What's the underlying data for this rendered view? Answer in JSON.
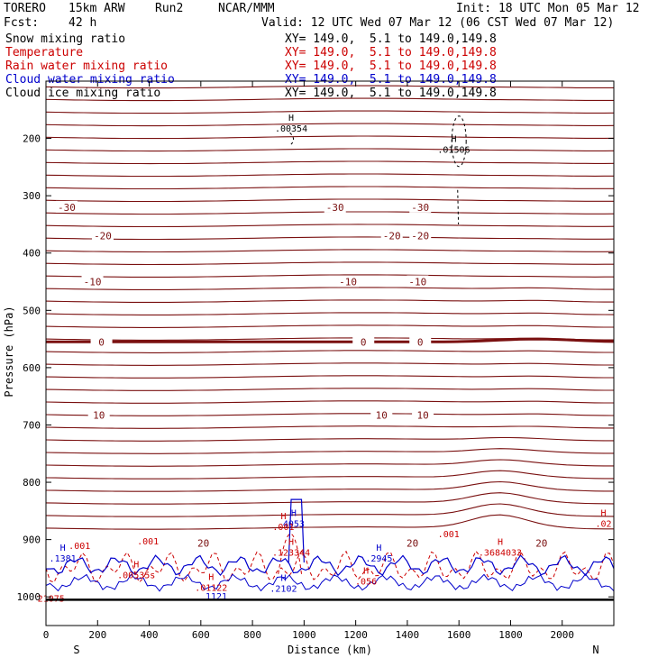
{
  "header": {
    "model": "TORERO",
    "resolution": "15km ARW",
    "run": "Run2",
    "org": "NCAR/MMM",
    "init": "Init: 18 UTC Mon 05 Mar 12",
    "fcst_label": "Fcst:",
    "fcst_value": "42 h",
    "valid": "Valid: 12 UTC Wed 07 Mar 12 (06 CST Wed 07 Mar 12)"
  },
  "legend": [
    {
      "name": "Snow mixing ratio",
      "xy": "XY= 149.0,  5.1 to 149.0,149.8",
      "color": "#000000"
    },
    {
      "name": "Temperature",
      "xy": "XY= 149.0,  5.1 to 149.0,149.8",
      "color": "#cc0000"
    },
    {
      "name": "Rain water mixing ratio",
      "xy": "XY= 149.0,  5.1 to 149.0,149.8",
      "color": "#cc0000"
    },
    {
      "name": "Cloud water mixing ratio",
      "xy": "XY= 149.0,  5.1 to 149.0,149.8",
      "color": "#0000cc"
    },
    {
      "name": "Cloud ice mixing ratio",
      "xy": "XY= 149.0,  5.1 to 149.0,149.8",
      "color": "#000000"
    }
  ],
  "chart_data": {
    "type": "contour-cross-section",
    "xlabel": "Distance (km)",
    "ylabel": "Pressure (hPa)",
    "xlim": [
      0,
      2200
    ],
    "ylim": [
      1050,
      100
    ],
    "x_ticks": [
      0,
      200,
      400,
      600,
      800,
      1000,
      1200,
      1400,
      1600,
      1800,
      2000
    ],
    "y_ticks": [
      200,
      300,
      400,
      500,
      600,
      700,
      800,
      900,
      1000
    ],
    "x_end_labels": {
      "left": "S",
      "right": "N"
    },
    "temperature_label_levels": [
      {
        "value": "-30",
        "pressure": 320,
        "label_x": [
          80,
          1120,
          1450
        ]
      },
      {
        "value": "-20",
        "pressure": 370,
        "label_x": [
          220,
          1340,
          1450
        ]
      },
      {
        "value": "-10",
        "pressure": 450,
        "label_x": [
          180,
          1170,
          1440
        ]
      },
      {
        "value": "0",
        "pressure": 555,
        "label_x": [
          215,
          1230,
          1450
        ]
      },
      {
        "value": "10",
        "pressure": 683,
        "label_x": [
          205,
          1300,
          1460
        ]
      },
      {
        "value": "20",
        "pressure": 906,
        "label_x": [
          610,
          1420,
          1920
        ]
      }
    ],
    "extrema_labels": [
      {
        "label": "H",
        "value": ".00354",
        "x": 950,
        "p": 185,
        "series": "snow"
      },
      {
        "label": "H",
        "value": ".01506",
        "x": 1580,
        "p": 222,
        "series": "snow"
      },
      {
        "label": "H",
        "value": "4053",
        "x": 960,
        "p": 875,
        "series": "cloud water"
      },
      {
        "label": "H",
        "value": ".1381",
        "x": 65,
        "p": 935,
        "series": "cloud water"
      },
      {
        "label": "H",
        "value": ".2945",
        "x": 1290,
        "p": 935,
        "series": "cloud water"
      },
      {
        "label": "H",
        "value": ".2102",
        "x": 920,
        "p": 988,
        "series": "cloud water"
      },
      {
        "label": "H",
        "value": ".123344",
        "x": 950,
        "p": 925,
        "series": "rain water"
      },
      {
        "label": "H",
        "value": ".001",
        "x": 920,
        "p": 880,
        "series": "rain water"
      },
      {
        "label": "H",
        "value": ".00535s",
        "x": 350,
        "p": 964,
        "series": "rain water"
      },
      {
        "label": "H",
        "value": ".01122",
        "x": 640,
        "p": 986,
        "series": "rain water"
      },
      {
        "label": "H",
        "value": ".056",
        "x": 1240,
        "p": 975,
        "series": "rain water"
      },
      {
        "label": "H",
        "value": ".3684033",
        "x": 1760,
        "p": 925,
        "series": "rain water"
      },
      {
        "label": "",
        "value": "21075",
        "x": 20,
        "p": 1005,
        "series": "rain water"
      },
      {
        "label": "",
        "value": ".001",
        "x": 130,
        "p": 913,
        "series": "rain water"
      },
      {
        "label": "",
        "value": ".001",
        "x": 395,
        "p": 905,
        "series": "rain water"
      },
      {
        "label": "",
        "value": ".001",
        "x": 1560,
        "p": 893,
        "series": "rain water"
      },
      {
        "label": "H",
        "value": ".02",
        "x": 2160,
        "p": 875,
        "series": "rain water"
      },
      {
        "label": "",
        "value": "1121",
        "x": 660,
        "p": 1001,
        "series": "cloud water"
      }
    ]
  }
}
